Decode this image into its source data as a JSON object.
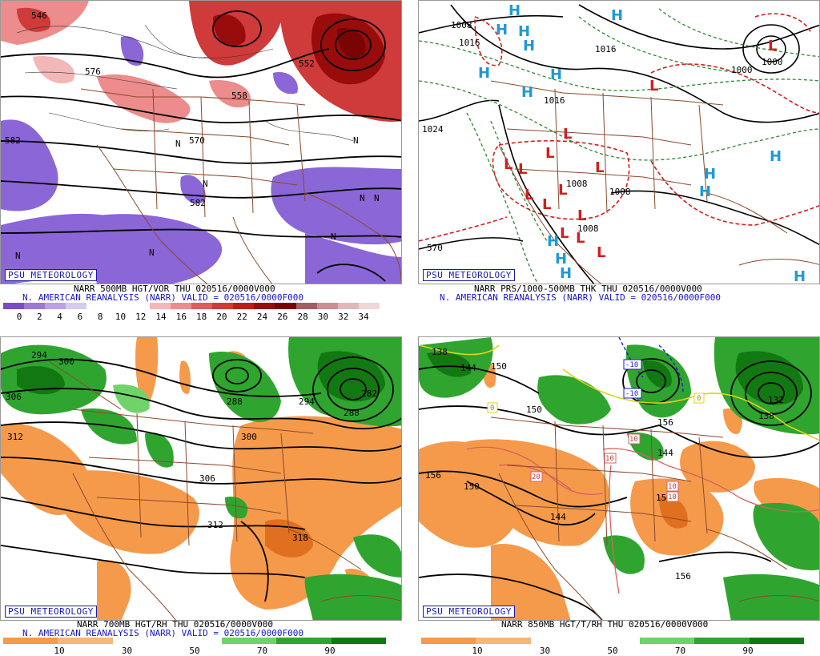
{
  "panels": {
    "p500": {
      "title": "NARR 500MB HGT/VOR THU 020516/0000V000",
      "subtitle": "N. AMERICAN REANALYSIS (NARR) VALID = 020516/0000F000",
      "brand": "PSU METEOROLOGY",
      "contour_labels": [
        "546",
        "576",
        "582",
        "570",
        "582",
        "558",
        "552"
      ],
      "legend_ticks": [
        "0",
        "2",
        "4",
        "6",
        "8",
        "10",
        "12",
        "14",
        "16",
        "18",
        "20",
        "22",
        "24",
        "26",
        "28",
        "30",
        "32",
        "34"
      ],
      "legend_colors": [
        "#7a4ccc",
        "#9c79d8",
        "#b7a2e2",
        "#d6cbef",
        "#ffffff",
        "#ffffff",
        "#ffffff",
        "#f3b7b7",
        "#ec8c8c",
        "#e05c5c",
        "#cf3a3a",
        "#b81e1e",
        "#990c0c",
        "#7a0404",
        "#a06060",
        "#c89090",
        "#e0b8b8",
        "#f0d8d8"
      ]
    },
    "psfc": {
      "title": "NARR PRS/1000-500MB THK THU 020516/0000V000",
      "subtitle": "N. AMERICAN REANALYSIS (NARR) VALID = 020516/0000F000",
      "brand": "PSU METEOROLOGY",
      "contour_labels": [
        "1008",
        "1016",
        "1024",
        "1016",
        "1000",
        "1000",
        "1008",
        "1008",
        "1008",
        "1016",
        "570"
      ]
    },
    "p700": {
      "title": "NARR 700MB HGT/RH THU 020516/0000V000",
      "subtitle": "N. AMERICAN REANALYSIS (NARR) VALID = 020516/0000F000",
      "brand": "PSU METEOROLOGY",
      "contour_labels": [
        "294",
        "300",
        "306",
        "312",
        "288",
        "300",
        "294",
        "282",
        "288",
        "306",
        "312",
        "318"
      ],
      "legend_ticks": [
        "10",
        "30",
        "50",
        "70",
        "90"
      ],
      "legend_colors": [
        "#f59a4a",
        "#f7b67a",
        "#ffffff",
        "#ffffff",
        "#6fd36a",
        "#2fa52f",
        "#127812"
      ]
    },
    "p850": {
      "title": "NARR 850MB HGT/T/RH THU 020516/0000V000",
      "brand": "PSU METEOROLOGY",
      "contour_labels": [
        "138",
        "144",
        "150",
        "156",
        "150",
        "150",
        "144",
        "156",
        "132",
        "138",
        "156",
        "144",
        "156"
      ],
      "temp_labels": [
        "0",
        "-10",
        "-10",
        "10",
        "10",
        "20",
        "10",
        "10",
        "0"
      ],
      "legend_ticks": [
        "10",
        "30",
        "50",
        "70",
        "90"
      ],
      "legend_colors": [
        "#f59a4a",
        "#f7b67a",
        "#ffffff",
        "#ffffff",
        "#6fd36a",
        "#2fa52f",
        "#127812"
      ]
    }
  },
  "symbols": {
    "high": "H",
    "low": "L",
    "north_vort": "N"
  },
  "colors": {
    "caption_blue": "#1515cc",
    "map_brown": "#8b4a2b",
    "orange": "#f59a4a",
    "green": "#2fa52f",
    "vort_red": "#d23c3c",
    "vort_purple": "#8a66d6"
  }
}
